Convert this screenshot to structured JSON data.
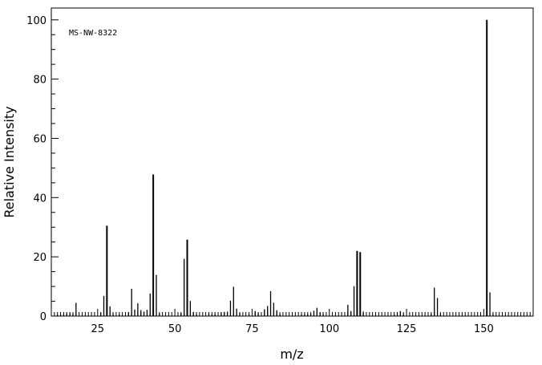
{
  "chart_data": {
    "type": "bar",
    "annotation": "MS-NW-8322",
    "xlabel": "m/z",
    "ylabel": "Relative Intensity",
    "xlim": [
      10,
      166
    ],
    "ylim": [
      0,
      104
    ],
    "x_ticks": [
      25,
      50,
      75,
      100,
      125,
      150
    ],
    "y_ticks": [
      0,
      20,
      40,
      60,
      80,
      100
    ],
    "grid": false,
    "legend": "none",
    "peaks": [
      {
        "mz": 12,
        "intensity": 0.4
      },
      {
        "mz": 13,
        "intensity": 0.5
      },
      {
        "mz": 14,
        "intensity": 0.6
      },
      {
        "mz": 15,
        "intensity": 0.8
      },
      {
        "mz": 16,
        "intensity": 1.0
      },
      {
        "mz": 17,
        "intensity": 0.7
      },
      {
        "mz": 18,
        "intensity": 4.5
      },
      {
        "mz": 26,
        "intensity": 1.2
      },
      {
        "mz": 27,
        "intensity": 6.8
      },
      {
        "mz": 28,
        "intensity": 30.5
      },
      {
        "mz": 29,
        "intensity": 3.3
      },
      {
        "mz": 30,
        "intensity": 0.6
      },
      {
        "mz": 32,
        "intensity": 0.5
      },
      {
        "mz": 35,
        "intensity": 1.3
      },
      {
        "mz": 36,
        "intensity": 9.2
      },
      {
        "mz": 37,
        "intensity": 2.2
      },
      {
        "mz": 38,
        "intensity": 4.3
      },
      {
        "mz": 39,
        "intensity": 2.0
      },
      {
        "mz": 40,
        "intensity": 1.5
      },
      {
        "mz": 41,
        "intensity": 2.1
      },
      {
        "mz": 42,
        "intensity": 7.6
      },
      {
        "mz": 43,
        "intensity": 47.8
      },
      {
        "mz": 44,
        "intensity": 13.9
      },
      {
        "mz": 45,
        "intensity": 0.9
      },
      {
        "mz": 52,
        "intensity": 1.0
      },
      {
        "mz": 53,
        "intensity": 19.3
      },
      {
        "mz": 54,
        "intensity": 25.8
      },
      {
        "mz": 55,
        "intensity": 5.1
      },
      {
        "mz": 56,
        "intensity": 1.4
      },
      {
        "mz": 57,
        "intensity": 0.6
      },
      {
        "mz": 61,
        "intensity": 0.9
      },
      {
        "mz": 62,
        "intensity": 0.5
      },
      {
        "mz": 63,
        "intensity": 0.6
      },
      {
        "mz": 65,
        "intensity": 1.1
      },
      {
        "mz": 66,
        "intensity": 1.4
      },
      {
        "mz": 67,
        "intensity": 1.5
      },
      {
        "mz": 68,
        "intensity": 5.2
      },
      {
        "mz": 69,
        "intensity": 9.9
      },
      {
        "mz": 70,
        "intensity": 2.5
      },
      {
        "mz": 71,
        "intensity": 1.1
      },
      {
        "mz": 74,
        "intensity": 0.5
      },
      {
        "mz": 76,
        "intensity": 1.7
      },
      {
        "mz": 77,
        "intensity": 0.9
      },
      {
        "mz": 79,
        "intensity": 2.3
      },
      {
        "mz": 80,
        "intensity": 3.4
      },
      {
        "mz": 81,
        "intensity": 8.4
      },
      {
        "mz": 82,
        "intensity": 4.5
      },
      {
        "mz": 83,
        "intensity": 2.0
      },
      {
        "mz": 84,
        "intensity": 0.6
      },
      {
        "mz": 91,
        "intensity": 0.5
      },
      {
        "mz": 92,
        "intensity": 0.6
      },
      {
        "mz": 93,
        "intensity": 0.6
      },
      {
        "mz": 94,
        "intensity": 0.8
      },
      {
        "mz": 95,
        "intensity": 1.8
      },
      {
        "mz": 96,
        "intensity": 2.8
      },
      {
        "mz": 97,
        "intensity": 1.3
      },
      {
        "mz": 98,
        "intensity": 0.6
      },
      {
        "mz": 106,
        "intensity": 3.8
      },
      {
        "mz": 107,
        "intensity": 1.7
      },
      {
        "mz": 108,
        "intensity": 10.1
      },
      {
        "mz": 109,
        "intensity": 22.0
      },
      {
        "mz": 110,
        "intensity": 21.6
      },
      {
        "mz": 111,
        "intensity": 1.5
      },
      {
        "mz": 121,
        "intensity": 0.5
      },
      {
        "mz": 122,
        "intensity": 1.3
      },
      {
        "mz": 123,
        "intensity": 1.7
      },
      {
        "mz": 124,
        "intensity": 0.6
      },
      {
        "mz": 133,
        "intensity": 0.7
      },
      {
        "mz": 134,
        "intensity": 9.6
      },
      {
        "mz": 135,
        "intensity": 6.1
      },
      {
        "mz": 136,
        "intensity": 0.8
      },
      {
        "mz": 151,
        "intensity": 100
      },
      {
        "mz": 152,
        "intensity": 8.0
      },
      {
        "mz": 153,
        "intensity": 0.6
      }
    ]
  }
}
